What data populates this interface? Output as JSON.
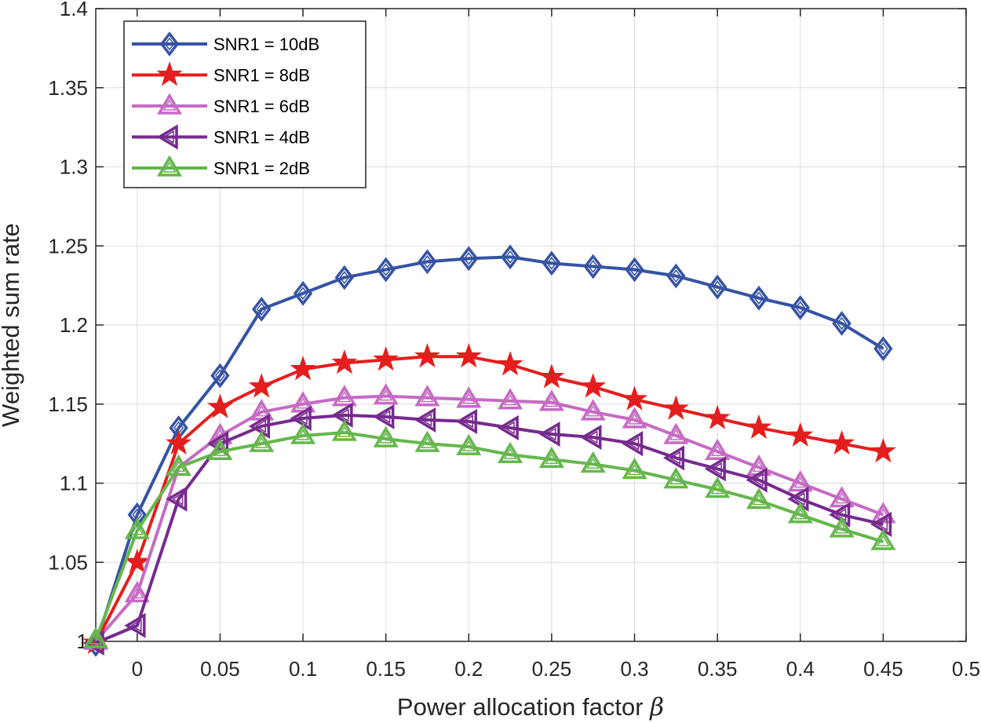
{
  "chart_data": {
    "type": "line",
    "xlabel": "Power allocation factor",
    "xlabel_symbol": "β",
    "ylabel": "Weighted sum rate",
    "xlim": [
      -0.025,
      0.5
    ],
    "ylim": [
      1,
      1.4
    ],
    "grid": true,
    "legend_placement": "top-left",
    "x_ticks": [
      "0",
      "0.05",
      "0.1",
      "0.15",
      "0.2",
      "0.25",
      "0.3",
      "0.35",
      "0.4",
      "0.45",
      "0.5"
    ],
    "y_ticks": [
      "1",
      "1.05",
      "1.1",
      "1.15",
      "1.2",
      "1.25",
      "1.3",
      "1.35",
      "1.4"
    ],
    "x": [
      -0.025,
      0,
      0.025,
      0.05,
      0.075,
      0.1,
      0.125,
      0.15,
      0.175,
      0.2,
      0.225,
      0.25,
      0.275,
      0.3,
      0.325,
      0.35,
      0.375,
      0.4,
      0.425,
      0.45
    ],
    "series": [
      {
        "name": "SNR1 = 10dB",
        "color": "#3653a4",
        "marker": "diamond",
        "values": [
          0.998,
          1.08,
          1.135,
          1.168,
          1.21,
          1.22,
          1.23,
          1.235,
          1.24,
          1.242,
          1.243,
          1.239,
          1.237,
          1.235,
          1.231,
          1.224,
          1.217,
          1.211,
          1.201,
          1.185
        ]
      },
      {
        "name": "SNR1 = 8dB",
        "color": "#e41e1e",
        "marker": "star",
        "values": [
          0.999,
          1.05,
          1.125,
          1.148,
          1.161,
          1.172,
          1.176,
          1.178,
          1.18,
          1.18,
          1.175,
          1.167,
          1.161,
          1.153,
          1.147,
          1.141,
          1.135,
          1.13,
          1.125,
          1.12
        ]
      },
      {
        "name": "SNR1 = 6dB",
        "color": "#c66ac4",
        "marker": "triangle-up",
        "values": [
          1.0,
          1.03,
          1.11,
          1.13,
          1.145,
          1.15,
          1.154,
          1.155,
          1.154,
          1.153,
          1.152,
          1.151,
          1.145,
          1.14,
          1.13,
          1.12,
          1.11,
          1.1,
          1.09,
          1.08
        ]
      },
      {
        "name": "SNR1 = 4dB",
        "color": "#762a8e",
        "marker": "triangle-left",
        "values": [
          0.999,
          1.01,
          1.09,
          1.125,
          1.136,
          1.141,
          1.143,
          1.142,
          1.14,
          1.139,
          1.135,
          1.131,
          1.129,
          1.125,
          1.116,
          1.109,
          1.102,
          1.09,
          1.08,
          1.074
        ]
      },
      {
        "name": "SNR1 = 2dB",
        "color": "#65b74c",
        "marker": "triangle-up",
        "values": [
          1.001,
          1.07,
          1.11,
          1.12,
          1.125,
          1.13,
          1.132,
          1.128,
          1.125,
          1.123,
          1.118,
          1.115,
          1.112,
          1.108,
          1.102,
          1.096,
          1.089,
          1.08,
          1.071,
          1.063
        ]
      }
    ]
  }
}
